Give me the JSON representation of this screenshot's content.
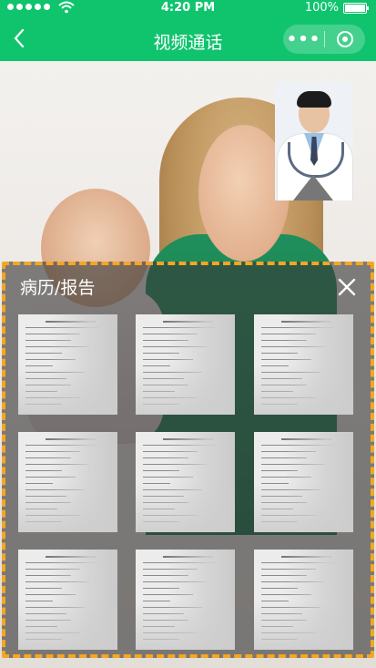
{
  "status_bar": {
    "time": "4:20 PM",
    "battery": "100%",
    "battery_level": 1.0
  },
  "header": {
    "title": "视频通话",
    "more_glyph": "•••"
  },
  "records_panel": {
    "title": "病历/报告",
    "documents": [
      {
        "name": "report-1"
      },
      {
        "name": "report-2"
      },
      {
        "name": "report-3"
      },
      {
        "name": "report-4"
      },
      {
        "name": "report-5"
      },
      {
        "name": "report-6"
      },
      {
        "name": "report-7"
      },
      {
        "name": "report-8"
      },
      {
        "name": "report-9"
      }
    ]
  },
  "colors": {
    "brand_green": "#10c46e",
    "highlight_border": "#f5a623",
    "panel_overlay": "#373737"
  },
  "icons": [
    "back-icon",
    "more-icon",
    "close-miniprogram-icon",
    "close-icon",
    "wifi-icon",
    "battery-icon"
  ]
}
